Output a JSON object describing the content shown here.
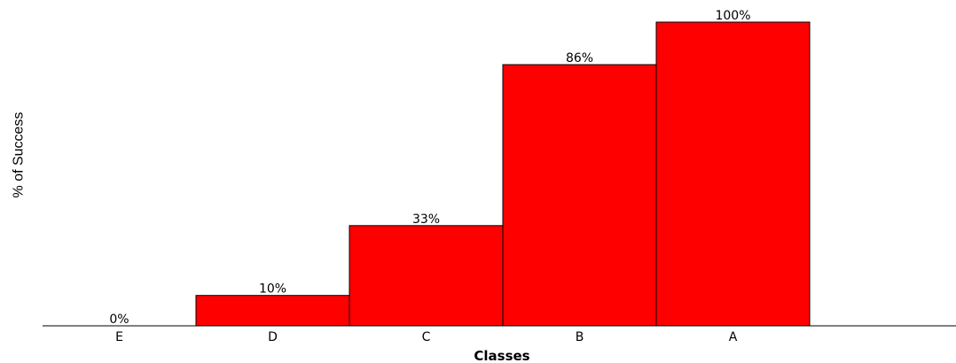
{
  "chart_data": {
    "type": "bar",
    "categories": [
      "E",
      "D",
      "C",
      "B",
      "A"
    ],
    "values": [
      0,
      10,
      33,
      86,
      100
    ],
    "data_labels": [
      "0%",
      "10%",
      "33%",
      "86%",
      "100%"
    ],
    "title": "",
    "xlabel": "Classes",
    "ylabel": "% of Success",
    "ylim": [
      0,
      100
    ],
    "grid": false,
    "bar_color": "#ff0000",
    "bar_edge_color": "#000000"
  }
}
